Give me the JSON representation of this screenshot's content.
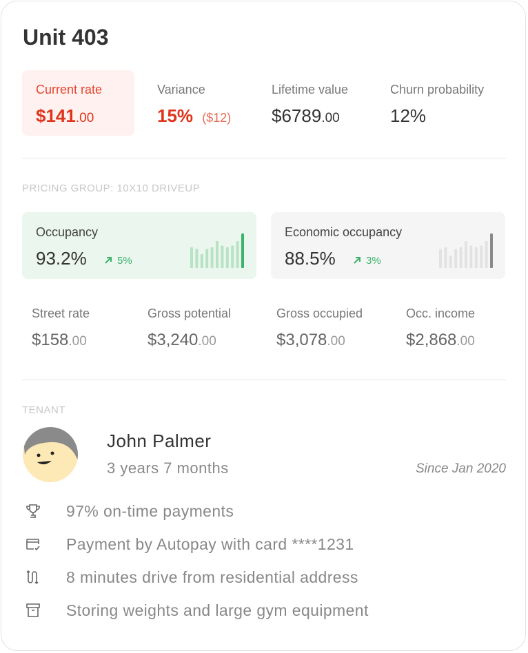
{
  "title": "Unit 403",
  "stats": [
    {
      "label": "Current rate",
      "value": "$141",
      "cents": ".00"
    },
    {
      "label": "Variance",
      "value": "15%",
      "note": "($12)"
    },
    {
      "label": "Lifetime value",
      "value": "$6789",
      "cents": ".00"
    },
    {
      "label": "Churn probability",
      "value": "12%"
    }
  ],
  "pricing_group": {
    "heading": "PRICING GROUP: 10X10 DRIVEUP",
    "occupancy_cards": [
      {
        "label": "Occupancy",
        "value": "93.2%",
        "change": "5%",
        "sparkline": [
          60,
          55,
          40,
          55,
          60,
          78,
          65,
          60,
          65,
          78,
          100
        ]
      },
      {
        "label": "Economic occupancy",
        "value": "88.5%",
        "change": "3%",
        "sparkline": [
          55,
          60,
          35,
          55,
          60,
          78,
          65,
          60,
          65,
          78,
          100
        ]
      }
    ],
    "metrics": [
      {
        "label": "Street rate",
        "value": "$158",
        "cents": ".00"
      },
      {
        "label": "Gross potential",
        "value": "$3,240",
        "cents": ".00"
      },
      {
        "label": "Gross occupied",
        "value": "$3,078",
        "cents": ".00"
      },
      {
        "label": "Occ. income",
        "value": "$2,868",
        "cents": ".00"
      }
    ]
  },
  "tenant": {
    "heading": "TENANT",
    "name": "John Palmer",
    "duration": "3 years 7 months",
    "since": "Since Jan 2020",
    "facts": [
      "97% on-time payments",
      "Payment by Autopay with card ****1231",
      "8 minutes drive from residential address",
      "Storing weights and large gym equipment"
    ]
  }
}
